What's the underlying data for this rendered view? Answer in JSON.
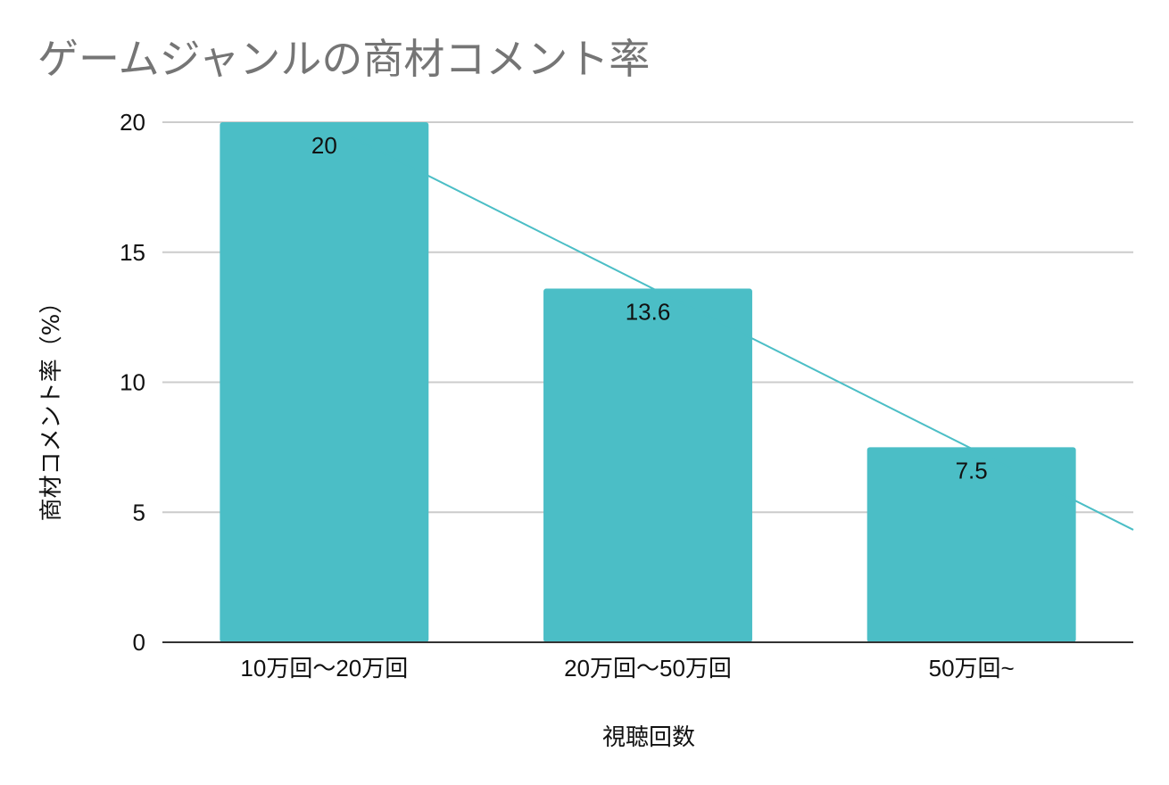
{
  "chart_data": {
    "type": "bar",
    "title": "ゲームジャンルの商材コメント率",
    "categories": [
      "10万回〜20万回",
      "20万回〜50万回",
      "50万回~"
    ],
    "series": [
      {
        "values": [
          20,
          13.6,
          7.5
        ],
        "data_labels": [
          "20",
          "13.6",
          "7.5"
        ],
        "color": "#4bbec6"
      }
    ],
    "trendline": {
      "type": "linear",
      "color": "#4bbec6"
    },
    "xlabel": "視聴回数",
    "ylabel": "商材コメント率（%）",
    "ylim": [
      0,
      20
    ],
    "yticks": [
      0,
      5,
      10,
      15,
      20
    ],
    "ytick_labels": [
      "0",
      "5",
      "10",
      "15",
      "20"
    ],
    "grid": true,
    "gridline_color": "#cccccc",
    "axis_color": "#333333",
    "legend": "none"
  }
}
